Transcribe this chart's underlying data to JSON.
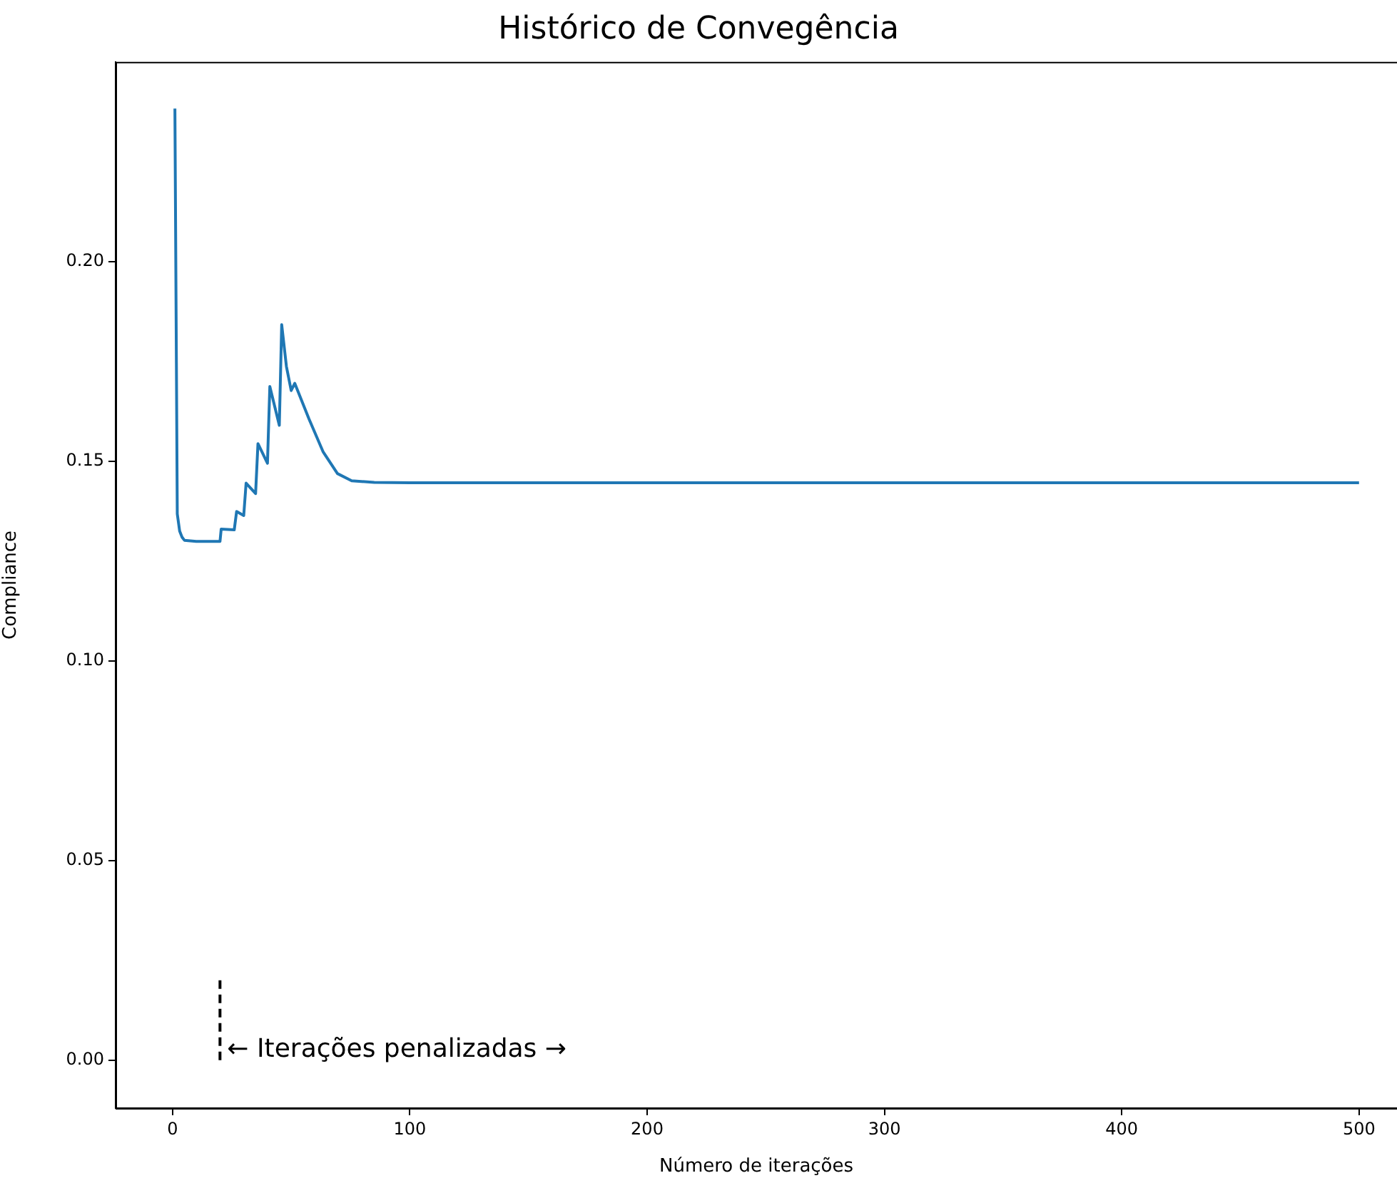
{
  "chart_data": {
    "type": "line",
    "title": "Histórico de Convegência",
    "xlabel": "Número de iterações",
    "ylabel": "Compliance",
    "xlim": [
      -24,
      516
    ],
    "ylim": [
      -0.012,
      0.25
    ],
    "xticks": [
      0,
      100,
      200,
      300,
      400,
      500
    ],
    "yticks": [
      {
        "value": 0,
        "label": "0.00"
      },
      {
        "value": 0.05,
        "label": "0.05"
      },
      {
        "value": 0.1,
        "label": "0.10"
      },
      {
        "value": 0.15,
        "label": "0.15"
      },
      {
        "value": 0.2,
        "label": "0.20"
      }
    ],
    "grid": false,
    "legend": false,
    "marker": "none",
    "series": [
      {
        "color": "#1f77b4",
        "line_style": "solid",
        "x": [
          1,
          2,
          3,
          4,
          5,
          10,
          15,
          20,
          20.5,
          26,
          27,
          30,
          31,
          35,
          36,
          40,
          41,
          45,
          46,
          48,
          50,
          51.5,
          57.5,
          63.5,
          69.5,
          75.5,
          85,
          100,
          200,
          300,
          400,
          500
        ],
        "values": [
          0.2383,
          0.1368,
          0.1325,
          0.131,
          0.1302,
          0.1299,
          0.1299,
          0.1299,
          0.133,
          0.1328,
          0.1374,
          0.1364,
          0.1445,
          0.1419,
          0.1544,
          0.1495,
          0.1687,
          0.159,
          0.1842,
          0.1737,
          0.1677,
          0.1695,
          0.1606,
          0.1523,
          0.1469,
          0.1451,
          0.1447,
          0.1446,
          0.1446,
          0.1446,
          0.1446,
          0.1446
        ]
      },
      {
        "color": "#000000",
        "line_style": "dashed",
        "x": [
          20,
          20
        ],
        "values": [
          0,
          0.0204
        ]
      }
    ],
    "annotations": [
      {
        "text": "← Iterações penalizadas →",
        "x": 20,
        "y": 0
      }
    ]
  }
}
